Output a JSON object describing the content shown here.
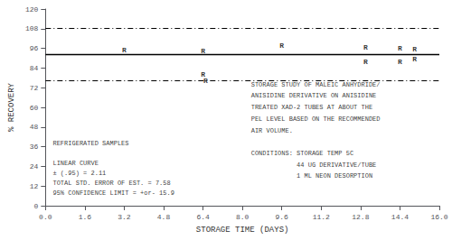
{
  "chart_data": {
    "type": "scatter",
    "xlabel": "STORAGE TIME (DAYS)",
    "ylabel": "% RECOVERY",
    "xlim": [
      0.0,
      16.0
    ],
    "ylim": [
      0,
      120
    ],
    "xticks": [
      {
        "value": 0.0,
        "label": "0.0"
      },
      1.6,
      3.2,
      4.8,
      6.4,
      {
        "value": 8.0,
        "label": "8.0"
      },
      9.6,
      11.2,
      12.8,
      14.4,
      {
        "value": 16.0,
        "label": "16.0"
      }
    ],
    "yticks": [
      0,
      12,
      24,
      36,
      48,
      60,
      72,
      84,
      96,
      108,
      120
    ],
    "grid": false,
    "series": [
      {
        "marker": "R",
        "color": "#000000",
        "values": [
          [
            3.2,
            95.0
          ],
          [
            6.4,
            94.5
          ],
          [
            9.6,
            97.5
          ],
          [
            13.0,
            96.5
          ],
          [
            14.4,
            96.0
          ],
          [
            15.0,
            95.5
          ]
        ]
      },
      {
        "marker": "R",
        "color": "#000000",
        "values": [
          [
            6.4,
            80.0
          ],
          [
            6.5,
            76.5
          ],
          [
            13.0,
            88.0
          ],
          [
            14.4,
            88.0
          ],
          [
            15.0,
            89.5
          ]
        ]
      }
    ],
    "hlines": [
      {
        "y": 92.5,
        "line_style": "solid",
        "color": "#000000"
      },
      {
        "y": 108.4,
        "line_style": "dashdot",
        "color": "#000000"
      },
      {
        "y": 76.6,
        "line_style": "dashdot",
        "color": "#000000"
      }
    ],
    "annotations": [
      {
        "text": "REFRIGERATED SAMPLES",
        "x": 0.3,
        "y": 36
      },
      {
        "text": "LINEAR CURVE",
        "x": 0.3,
        "y": 24
      },
      {
        "text": "± (.95) = 2.11",
        "x": 0.3,
        "y": 18
      },
      {
        "text": "TOTAL STD. ERROR OF EST. = 7.58",
        "x": 0.3,
        "y": 12
      },
      {
        "text": "95% CONFIDENCE LIMIT = +or- 15.9",
        "x": 0.3,
        "y": 6
      },
      {
        "text": "STORAGE STUDY OF MALEIC ANHYDRIDE/",
        "x": 8.35,
        "y": 72
      },
      {
        "text": "ANISIDINE DERIVATIVE ON ANISIDINE",
        "x": 8.35,
        "y": 65
      },
      {
        "text": "TREATED XAD-2 TUBES AT ABOUT THE",
        "x": 8.35,
        "y": 58
      },
      {
        "text": "PEL LEVEL BASED ON THE RECOMMENDED",
        "x": 8.35,
        "y": 51
      },
      {
        "text": "AIR VOLUME.",
        "x": 8.35,
        "y": 44
      },
      {
        "text": "CONDITIONS: STORAGE TEMP 5C",
        "x": 8.35,
        "y": 30
      },
      {
        "text": "            44 UG DERIVATIVE/TUBE",
        "x": 8.35,
        "y": 23
      },
      {
        "text": "            1 ML NEON DESORPTION",
        "x": 8.35,
        "y": 16
      }
    ]
  }
}
